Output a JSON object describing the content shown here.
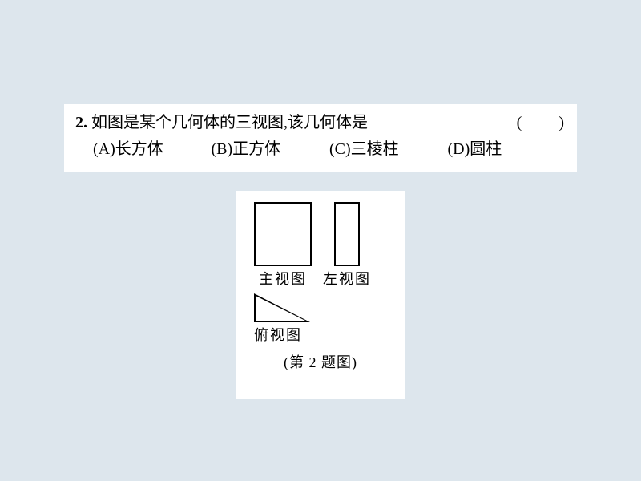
{
  "question": {
    "number": "2.",
    "text": "如图是某个几何体的三视图,该几何体是",
    "paren": "(　　)",
    "options": {
      "a": "(A)长方体",
      "b": "(B)正方体",
      "c": "(C)三棱柱",
      "d": "(D)圆柱"
    }
  },
  "figure": {
    "front_label": "主视图",
    "side_label": "左视图",
    "top_label": "俯视图",
    "caption": "(第 2 题图)"
  },
  "colors": {
    "page_bg": "#dde6ed",
    "panel_bg": "#ffffff",
    "stroke": "#000000"
  }
}
